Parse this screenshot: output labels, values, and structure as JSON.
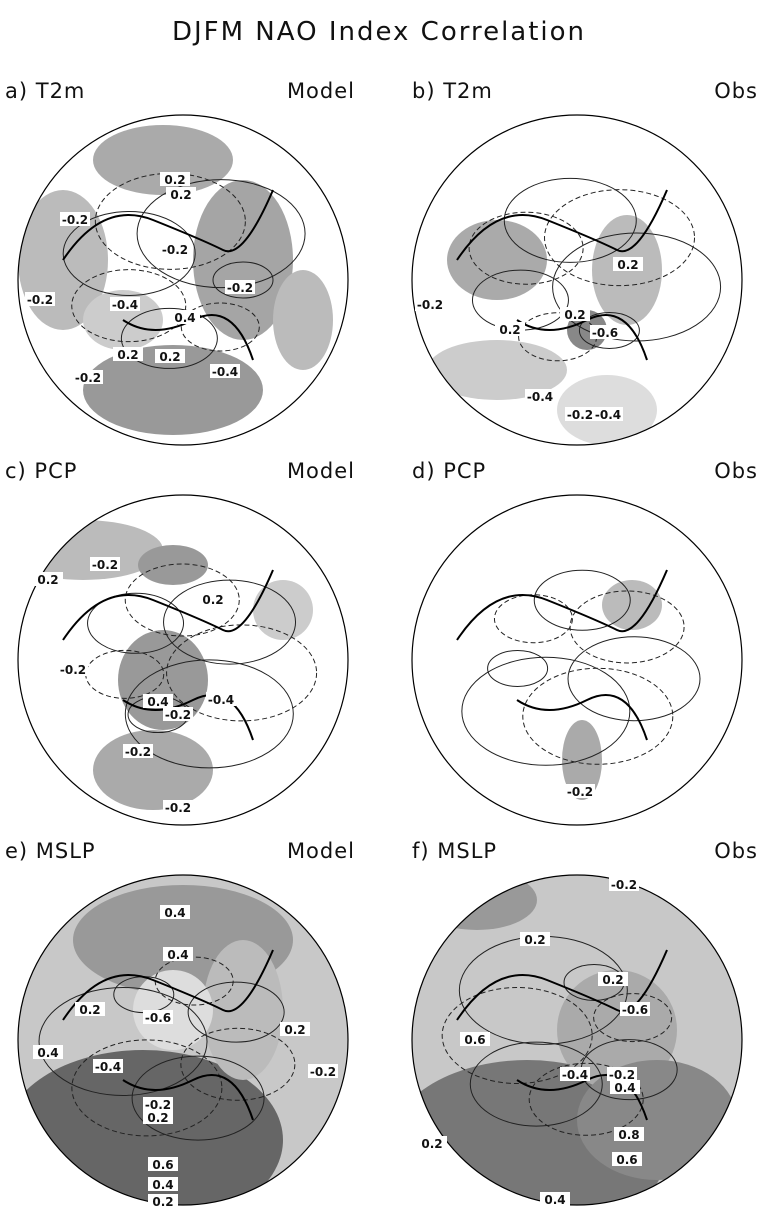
{
  "title": "DJFM NAO Index Correlation",
  "panels": [
    {
      "label": "a) T2m",
      "source": "Model",
      "contour_labels": [
        "0.2",
        "0.2",
        "-0.2",
        "-0.2",
        "-0.4",
        "-0.2",
        "-0.2",
        "0.4",
        "0.2",
        "0.2",
        "-0.2",
        "-0.4"
      ]
    },
    {
      "label": "b) T2m",
      "source": "Obs",
      "contour_labels": [
        "0.2",
        "-0.2",
        "0.2",
        "0.2",
        "-0.6",
        "-0.4",
        "-0.2",
        "-0.4"
      ]
    },
    {
      "label": "c) PCP",
      "source": "Model",
      "contour_labels": [
        "0.2",
        "-0.2",
        "0.2",
        "-0.2",
        "0.4",
        "-0.4",
        "-0.2",
        "-0.2",
        "-0.2"
      ]
    },
    {
      "label": "d) PCP",
      "source": "Obs",
      "contour_labels": [
        "-0.2"
      ]
    },
    {
      "label": "e) MSLP",
      "source": "Model",
      "contour_labels": [
        "0.4",
        "0.4",
        "0.2",
        "-0.6",
        "0.4",
        "-0.4",
        "0.2",
        "-0.2",
        "0.2",
        "-0.2",
        "0.6",
        "0.4",
        "0.2"
      ]
    },
    {
      "label": "f) MSLP",
      "source": "Obs",
      "contour_labels": [
        "-0.2",
        "0.2",
        "0.2",
        "-0.6",
        "0.6",
        "-0.4",
        "-0.2",
        "0.4",
        "0.2",
        "0.8",
        "0.6",
        "0.4"
      ]
    }
  ]
}
